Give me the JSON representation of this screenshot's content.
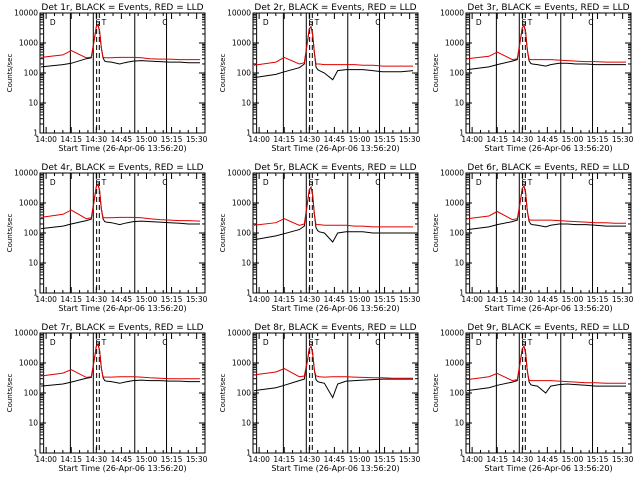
{
  "chart_data": [
    {
      "type": "line",
      "title": "Det 1r, BLACK = Events, RED = LLD",
      "xlabel": "Start Time (26-Apr-06 13:56:20)",
      "ylabel": "Counts/sec",
      "yscale": "log",
      "ylim": [
        1,
        10000
      ],
      "xlim": [
        "13:56:20",
        "15:35:00"
      ],
      "x_ticks": [
        "14:00",
        "14:15",
        "14:30",
        "14:45",
        "15:00",
        "15:15",
        "15:30"
      ],
      "y_ticks": [
        "1",
        "10",
        "100",
        "1000",
        "10000"
      ],
      "marker_labels": [
        "D",
        "S",
        "T",
        "C"
      ],
      "x": [
        "13:57",
        "14:10",
        "14:15",
        "14:24",
        "14:27",
        "14:29",
        "14:30",
        "14:31",
        "14:32",
        "14:33",
        "14:34",
        "14:35",
        "14:36",
        "14:39",
        "14:44",
        "14:47",
        "14:52",
        "14:57",
        "15:02",
        "15:08",
        "15:14",
        "15:20",
        "15:25",
        "15:32"
      ],
      "series": [
        {
          "name": "BLACK = Events",
          "values": [
            160,
            190,
            210,
            300,
            320,
            1500,
            3500,
            4000,
            2500,
            700,
            320,
            250,
            240,
            230,
            200,
            220,
            250,
            260,
            250,
            240,
            230,
            230,
            220,
            220
          ]
        },
        {
          "name": "RED = LLD",
          "values": [
            330,
            400,
            560,
            320,
            340,
            1500,
            3500,
            4000,
            2500,
            700,
            340,
            320,
            320,
            320,
            330,
            330,
            330,
            320,
            300,
            290,
            290,
            280,
            280,
            280
          ]
        }
      ]
    },
    {
      "type": "line",
      "title": "Det 2r, BLACK = Events, RED = LLD",
      "xlabel": "Start Time (26-Apr-06 13:56:20)",
      "ylabel": "Counts/sec",
      "yscale": "log",
      "ylim": [
        1,
        10000
      ],
      "xlim": [
        "13:56:20",
        "15:35:00"
      ],
      "x_ticks": [
        "14:00",
        "14:15",
        "14:30",
        "14:45",
        "15:00",
        "15:15",
        "15:30"
      ],
      "y_ticks": [
        "1",
        "10",
        "100",
        "1000",
        "10000"
      ],
      "marker_labels": [
        "D",
        "S",
        "T",
        "C"
      ],
      "x": [
        "13:57",
        "14:10",
        "14:15",
        "14:24",
        "14:27",
        "14:29",
        "14:30",
        "14:31",
        "14:32",
        "14:33",
        "14:34",
        "14:35",
        "14:36",
        "14:39",
        "14:44",
        "14:47",
        "14:52",
        "14:57",
        "15:02",
        "15:08",
        "15:14",
        "15:20",
        "15:25",
        "15:32"
      ],
      "series": [
        {
          "name": "BLACK = Events",
          "values": [
            70,
            90,
            110,
            150,
            200,
            1200,
            3000,
            3500,
            2000,
            500,
            160,
            130,
            120,
            100,
            60,
            120,
            130,
            130,
            130,
            120,
            110,
            110,
            110,
            120
          ]
        },
        {
          "name": "RED = LLD",
          "values": [
            180,
            230,
            330,
            200,
            220,
            1200,
            3000,
            3500,
            2000,
            500,
            200,
            200,
            200,
            190,
            190,
            190,
            190,
            190,
            180,
            180,
            170,
            170,
            170,
            170
          ]
        }
      ]
    },
    {
      "type": "line",
      "title": "Det 3r, BLACK = Events, RED = LLD",
      "xlabel": "Start Time (26-Apr-06 13:56:20)",
      "ylabel": "Counts/sec",
      "yscale": "log",
      "ylim": [
        1,
        10000
      ],
      "xlim": [
        "13:56:20",
        "15:35:00"
      ],
      "x_ticks": [
        "14:00",
        "14:15",
        "14:30",
        "14:45",
        "15:00",
        "15:15",
        "15:30"
      ],
      "y_ticks": [
        "1",
        "10",
        "100",
        "1000",
        "10000"
      ],
      "marker_labels": [
        "D",
        "S",
        "T",
        "C"
      ],
      "x": [
        "13:57",
        "14:10",
        "14:15",
        "14:24",
        "14:27",
        "14:29",
        "14:30",
        "14:31",
        "14:32",
        "14:33",
        "14:34",
        "14:35",
        "14:36",
        "14:39",
        "14:44",
        "14:47",
        "14:52",
        "14:57",
        "15:02",
        "15:08",
        "15:14",
        "15:20",
        "15:25",
        "15:32"
      ],
      "series": [
        {
          "name": "BLACK = Events",
          "values": [
            130,
            160,
            190,
            250,
            280,
            1400,
            3200,
            3800,
            2300,
            600,
            260,
            210,
            200,
            190,
            170,
            190,
            210,
            210,
            200,
            200,
            190,
            190,
            190,
            190
          ]
        },
        {
          "name": "RED = LLD",
          "values": [
            300,
            360,
            500,
            280,
            300,
            1400,
            3200,
            3800,
            2300,
            600,
            290,
            280,
            280,
            280,
            280,
            280,
            270,
            260,
            250,
            240,
            240,
            230,
            230,
            230
          ]
        }
      ]
    },
    {
      "type": "line",
      "title": "Det 4r, BLACK = Events, RED = LLD",
      "xlabel": "Start Time (26-Apr-06 13:56:20)",
      "ylabel": "Counts/sec",
      "yscale": "log",
      "ylim": [
        1,
        10000
      ],
      "xlim": [
        "13:56:20",
        "15:35:00"
      ],
      "x_ticks": [
        "14:00",
        "14:15",
        "14:30",
        "14:45",
        "15:00",
        "15:15",
        "15:30"
      ],
      "y_ticks": [
        "1",
        "10",
        "100",
        "1000",
        "10000"
      ],
      "marker_labels": [
        "D",
        "S",
        "T",
        "C"
      ],
      "x": [
        "13:57",
        "14:10",
        "14:15",
        "14:24",
        "14:27",
        "14:29",
        "14:30",
        "14:31",
        "14:32",
        "14:33",
        "14:34",
        "14:35",
        "14:36",
        "14:39",
        "14:44",
        "14:47",
        "14:52",
        "14:57",
        "15:02",
        "15:08",
        "15:14",
        "15:20",
        "15:25",
        "15:32"
      ],
      "series": [
        {
          "name": "BLACK = Events",
          "values": [
            140,
            170,
            200,
            260,
            290,
            1500,
            3500,
            4200,
            2600,
            650,
            300,
            240,
            230,
            220,
            190,
            210,
            240,
            250,
            240,
            230,
            220,
            210,
            200,
            200
          ]
        },
        {
          "name": "RED = LLD",
          "values": [
            330,
            420,
            580,
            300,
            320,
            1500,
            3500,
            4200,
            2600,
            650,
            330,
            320,
            320,
            320,
            330,
            330,
            330,
            320,
            300,
            280,
            270,
            260,
            260,
            250
          ]
        }
      ]
    },
    {
      "type": "line",
      "title": "Det 5r, BLACK = Events, RED = LLD",
      "xlabel": "Start Time (26-Apr-06 13:56:20)",
      "ylabel": "Counts/sec",
      "yscale": "log",
      "ylim": [
        1,
        10000
      ],
      "xlim": [
        "13:56:20",
        "15:35:00"
      ],
      "x_ticks": [
        "14:00",
        "14:15",
        "14:30",
        "14:45",
        "15:00",
        "15:15",
        "15:30"
      ],
      "y_ticks": [
        "1",
        "10",
        "100",
        "1000",
        "10000"
      ],
      "marker_labels": [
        "D",
        "S",
        "T",
        "C"
      ],
      "x": [
        "13:57",
        "14:10",
        "14:15",
        "14:24",
        "14:27",
        "14:29",
        "14:30",
        "14:31",
        "14:32",
        "14:33",
        "14:34",
        "14:35",
        "14:36",
        "14:39",
        "14:44",
        "14:47",
        "14:52",
        "14:57",
        "15:02",
        "15:08",
        "15:14",
        "15:20",
        "15:25",
        "15:32"
      ],
      "series": [
        {
          "name": "BLACK = Events",
          "values": [
            60,
            80,
            95,
            130,
            170,
            1100,
            2800,
            3400,
            1900,
            450,
            150,
            120,
            110,
            100,
            50,
            100,
            110,
            110,
            110,
            100,
            100,
            100,
            100,
            100
          ]
        },
        {
          "name": "RED = LLD",
          "values": [
            180,
            220,
            300,
            180,
            200,
            1100,
            2800,
            3400,
            1900,
            450,
            190,
            190,
            190,
            180,
            180,
            180,
            180,
            170,
            170,
            160,
            160,
            160,
            160,
            160
          ]
        }
      ]
    },
    {
      "type": "line",
      "title": "Det 6r, BLACK = Events, RED = LLD",
      "xlabel": "Start Time (26-Apr-06 13:56:20)",
      "ylabel": "Counts/sec",
      "yscale": "log",
      "ylim": [
        1,
        10000
      ],
      "xlim": [
        "13:56:20",
        "15:35:00"
      ],
      "x_ticks": [
        "14:00",
        "14:15",
        "14:30",
        "14:45",
        "15:00",
        "15:15",
        "15:30"
      ],
      "y_ticks": [
        "1",
        "10",
        "100",
        "1000",
        "10000"
      ],
      "marker_labels": [
        "D",
        "S",
        "T",
        "C"
      ],
      "x": [
        "13:57",
        "14:10",
        "14:15",
        "14:24",
        "14:27",
        "14:29",
        "14:30",
        "14:31",
        "14:32",
        "14:33",
        "14:34",
        "14:35",
        "14:36",
        "14:39",
        "14:44",
        "14:47",
        "14:52",
        "14:57",
        "15:02",
        "15:08",
        "15:14",
        "15:20",
        "15:25",
        "15:32"
      ],
      "series": [
        {
          "name": "BLACK = Events",
          "values": [
            130,
            160,
            190,
            240,
            270,
            1300,
            3100,
            3700,
            2200,
            550,
            250,
            200,
            190,
            180,
            160,
            180,
            200,
            200,
            190,
            190,
            180,
            170,
            170,
            170
          ]
        },
        {
          "name": "RED = LLD",
          "values": [
            300,
            370,
            520,
            280,
            300,
            1300,
            3100,
            3700,
            2200,
            550,
            280,
            270,
            270,
            270,
            270,
            270,
            260,
            250,
            240,
            230,
            220,
            220,
            210,
            210
          ]
        }
      ]
    },
    {
      "type": "line",
      "title": "Det 7r, BLACK = Events, RED = LLD",
      "xlabel": "Start Time (26-Apr-06 13:56:20)",
      "ylabel": "Counts/sec",
      "yscale": "log",
      "ylim": [
        1,
        10000
      ],
      "xlim": [
        "13:56:20",
        "15:35:00"
      ],
      "x_ticks": [
        "14:00",
        "14:15",
        "14:30",
        "14:45",
        "15:00",
        "15:15",
        "15:30"
      ],
      "y_ticks": [
        "1",
        "10",
        "100",
        "1000",
        "10000"
      ],
      "marker_labels": [
        "D",
        "S",
        "T",
        "C"
      ],
      "x": [
        "13:57",
        "14:10",
        "14:15",
        "14:24",
        "14:27",
        "14:29",
        "14:30",
        "14:31",
        "14:32",
        "14:33",
        "14:34",
        "14:35",
        "14:36",
        "14:39",
        "14:44",
        "14:47",
        "14:52",
        "14:57",
        "15:02",
        "15:08",
        "15:14",
        "15:20",
        "15:25",
        "15:32"
      ],
      "series": [
        {
          "name": "BLACK = Events",
          "values": [
            170,
            200,
            230,
            310,
            330,
            1500,
            3600,
            4300,
            2600,
            700,
            330,
            260,
            250,
            240,
            210,
            230,
            260,
            270,
            260,
            260,
            250,
            250,
            240,
            240
          ]
        },
        {
          "name": "RED = LLD",
          "values": [
            370,
            460,
            600,
            330,
            350,
            1500,
            3600,
            4300,
            2600,
            700,
            350,
            340,
            340,
            340,
            350,
            350,
            350,
            340,
            320,
            310,
            300,
            300,
            300,
            300
          ]
        }
      ]
    },
    {
      "type": "line",
      "title": "Det 8r, BLACK = Events, RED = LLD",
      "xlabel": "Start Time (26-Apr-06 13:56:20)",
      "ylabel": "Counts/sec",
      "yscale": "log",
      "ylim": [
        1,
        10000
      ],
      "xlim": [
        "13:56:20",
        "15:35:00"
      ],
      "x_ticks": [
        "14:00",
        "14:15",
        "14:30",
        "14:45",
        "15:00",
        "15:15",
        "15:30"
      ],
      "y_ticks": [
        "1",
        "10",
        "100",
        "1000",
        "10000"
      ],
      "marker_labels": [
        "D",
        "S",
        "T",
        "C"
      ],
      "x": [
        "13:57",
        "14:10",
        "14:15",
        "14:24",
        "14:27",
        "14:29",
        "14:30",
        "14:31",
        "14:32",
        "14:33",
        "14:34",
        "14:35",
        "14:36",
        "14:39",
        "14:44",
        "14:47",
        "14:52",
        "14:57",
        "15:02",
        "15:08",
        "15:14",
        "15:20",
        "15:25",
        "15:32"
      ],
      "series": [
        {
          "name": "BLACK = Events",
          "values": [
            120,
            150,
            180,
            260,
            290,
            1300,
            3000,
            3600,
            2200,
            600,
            280,
            240,
            230,
            210,
            70,
            200,
            250,
            260,
            270,
            280,
            290,
            290,
            290,
            290
          ]
        },
        {
          "name": "RED = LLD",
          "values": [
            400,
            500,
            650,
            350,
            370,
            1300,
            3000,
            3600,
            2200,
            600,
            370,
            360,
            350,
            340,
            350,
            350,
            350,
            340,
            330,
            320,
            320,
            310,
            310,
            310
          ]
        }
      ]
    },
    {
      "type": "line",
      "title": "Det 9r, BLACK = Events, RED = LLD",
      "xlabel": "Start Time (26-Apr-06 13:56:20)",
      "ylabel": "Counts/sec",
      "yscale": "log",
      "ylim": [
        1,
        10000
      ],
      "xlim": [
        "13:56:20",
        "15:35:00"
      ],
      "x_ticks": [
        "14:00",
        "14:15",
        "14:30",
        "14:45",
        "15:00",
        "15:15",
        "15:30"
      ],
      "y_ticks": [
        "1",
        "10",
        "100",
        "1000",
        "10000"
      ],
      "marker_labels": [
        "D",
        "S",
        "T",
        "C"
      ],
      "x": [
        "13:57",
        "14:10",
        "14:15",
        "14:24",
        "14:27",
        "14:29",
        "14:30",
        "14:31",
        "14:32",
        "14:33",
        "14:34",
        "14:35",
        "14:36",
        "14:39",
        "14:44",
        "14:47",
        "14:52",
        "14:57",
        "15:02",
        "15:08",
        "15:14",
        "15:20",
        "15:25",
        "15:32"
      ],
      "series": [
        {
          "name": "BLACK = Events",
          "values": [
            120,
            150,
            180,
            230,
            260,
            1300,
            3000,
            3600,
            2200,
            550,
            240,
            190,
            180,
            170,
            100,
            170,
            190,
            200,
            190,
            180,
            170,
            170,
            170,
            170
          ]
        },
        {
          "name": "RED = LLD",
          "values": [
            280,
            350,
            450,
            260,
            280,
            1300,
            3000,
            3600,
            2200,
            550,
            270,
            260,
            260,
            260,
            260,
            260,
            250,
            240,
            230,
            220,
            220,
            210,
            210,
            210
          ]
        }
      ]
    }
  ],
  "colors": {
    "events": "#000000",
    "lld": "#e00000"
  }
}
